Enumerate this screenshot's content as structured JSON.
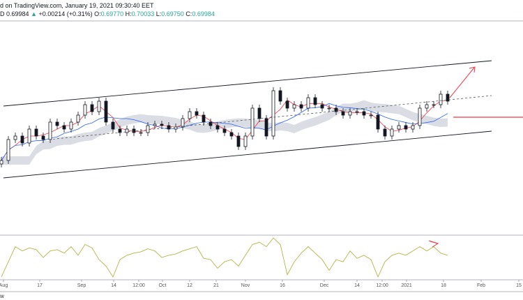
{
  "header": {
    "line1": "d on TradingView.com, January 19, 2021 09:30:40 EET",
    "symbol_prefix": "D",
    "last": "0.69984",
    "change_icon": "triangle-up-icon",
    "change": "+0.00214 (+0.31%)",
    "o_label": "O:",
    "o": "0.69770",
    "h_label": "H:",
    "h": "0.70033",
    "l_label": "L:",
    "l": "0.69750",
    "c_label": "C:",
    "c": "0.69984"
  },
  "footer": {
    "label": "w"
  },
  "colors": {
    "candle": "#131722",
    "fast_line": "#f23645",
    "slow_line": "#2962ff",
    "cloud": "#d1d4dc",
    "oscillator": "#b5b347",
    "annotation": "#f23645",
    "channel": "#131722"
  },
  "chart_data": {
    "type": "candlestick",
    "x_ticks": [
      "Aug",
      "17",
      "Sep",
      "14",
      "12:00",
      "Oct",
      "12",
      "21",
      "Nov",
      "16",
      "Dec",
      "14",
      "12:00",
      "2021",
      "18",
      "Feb",
      "15"
    ],
    "closes": [
      0.6828,
      0.6888,
      0.6898,
      0.6878,
      0.6918,
      0.6898,
      0.6888,
      0.6938,
      0.6928,
      0.6918,
      0.6938,
      0.6958,
      0.6988,
      0.6968,
      0.6998,
      0.6938,
      0.6918,
      0.6908,
      0.6918,
      0.6908,
      0.6908,
      0.6928,
      0.6932,
      0.6928,
      0.6918,
      0.6924,
      0.6948,
      0.6968,
      0.6958,
      0.6938,
      0.6928,
      0.6918,
      0.6908,
      0.6898,
      0.6868,
      0.6898,
      0.6978,
      0.6948,
      0.6898,
      0.7028,
      0.6998,
      0.6978,
      0.6988,
      0.6978,
      0.7008,
      0.6988,
      0.6978,
      0.6978,
      0.6968,
      0.6958,
      0.6968,
      0.6968,
      0.6958,
      0.6958,
      0.6918,
      0.6898,
      0.6918,
      0.6928,
      0.6918,
      0.6928,
      0.6978,
      0.6988,
      0.6988,
      0.7018,
      0.6998
    ],
    "oscillator": [
      5,
      40,
      75,
      65,
      72,
      68,
      50,
      65,
      68,
      60,
      75,
      55,
      80,
      72,
      45,
      30,
      5,
      45,
      55,
      60,
      63,
      70,
      65,
      50,
      55,
      58,
      65,
      70,
      75,
      48,
      45,
      25,
      40,
      45,
      30,
      55,
      80,
      85,
      75,
      95,
      80,
      10,
      40,
      60,
      75,
      60,
      45,
      20,
      45,
      40,
      65,
      48,
      55,
      45,
      5,
      40,
      55,
      60,
      55,
      65,
      75,
      65,
      75,
      60,
      55
    ],
    "annotations": [
      "ascending-channel",
      "dashed-midline",
      "up-arrow",
      "horizontal-level",
      "oscillator-arrow"
    ]
  }
}
